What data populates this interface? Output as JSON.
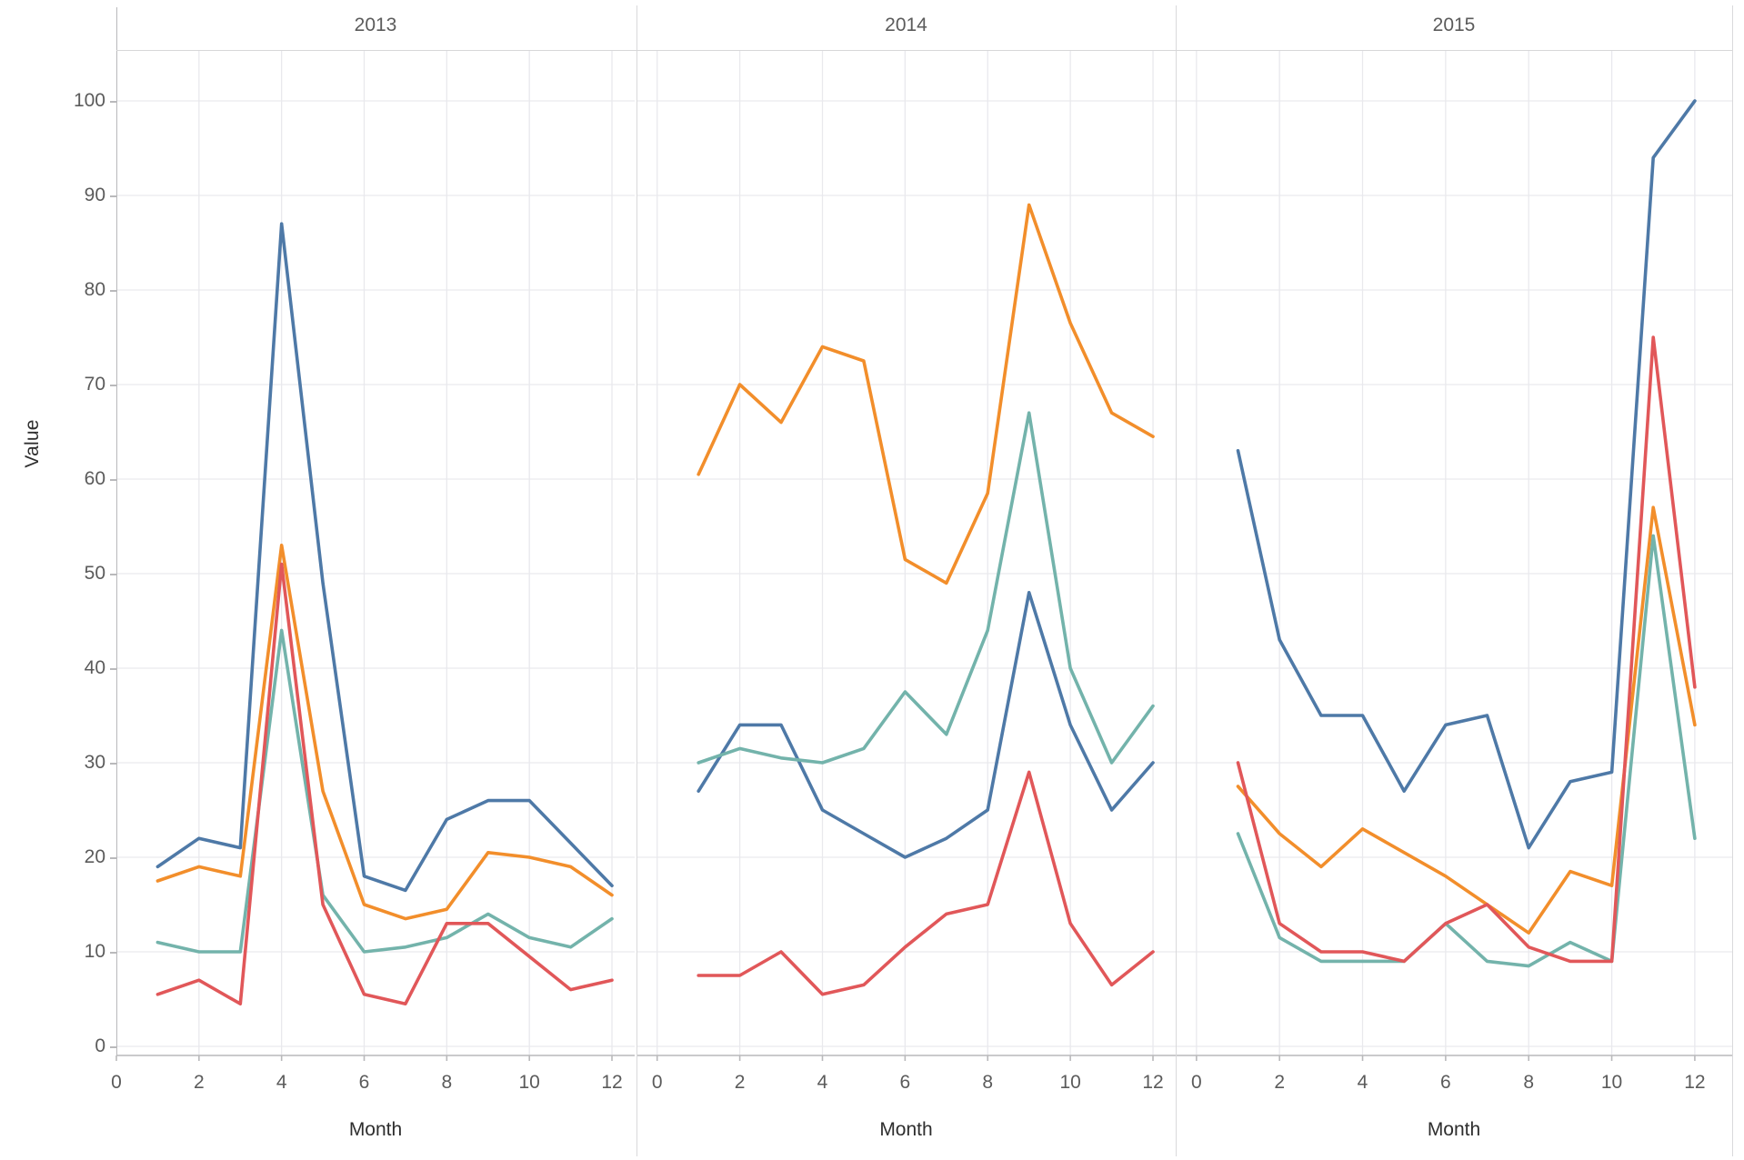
{
  "figure": {
    "y_axis": {
      "label": "Value",
      "ticks": [
        0,
        10,
        20,
        30,
        40,
        50,
        60,
        70,
        80,
        90,
        100
      ],
      "range": [
        -1,
        105.5
      ]
    },
    "x_axis": {
      "label": "Month",
      "ticks": [
        0,
        2,
        4,
        6,
        8,
        10,
        12
      ]
    },
    "facet_titles": [
      "2013",
      "2014",
      "2015"
    ]
  },
  "chart_data": {
    "type": "line",
    "title": "",
    "xlabel": "Month",
    "ylabel": "Value",
    "ylim": [
      -1,
      105.5
    ],
    "x_ticks": [
      0,
      2,
      4,
      6,
      8,
      10,
      12
    ],
    "y_ticks": [
      0,
      10,
      20,
      30,
      40,
      50,
      60,
      70,
      80,
      90,
      100
    ],
    "grid": true,
    "legend": "none",
    "x": [
      1,
      2,
      3,
      4,
      5,
      6,
      7,
      8,
      9,
      10,
      11,
      12
    ],
    "palette": {
      "blue": "#4e79a7",
      "orange": "#f28e2b",
      "teal": "#73b3ab",
      "red": "#e15759"
    },
    "facets": [
      {
        "title": "2013",
        "series": [
          {
            "name": "blue",
            "color": "#4e79a7",
            "values": [
              19,
              22,
              21,
              87,
              49,
              18,
              16.5,
              24,
              26,
              26,
              21.5,
              17
            ]
          },
          {
            "name": "orange",
            "color": "#f28e2b",
            "values": [
              17.5,
              19,
              18,
              53,
              27,
              15,
              13.5,
              14.5,
              20.5,
              20,
              19,
              16
            ]
          },
          {
            "name": "teal",
            "color": "#73b3ab",
            "values": [
              11,
              10,
              10,
              44,
              16,
              10,
              10.5,
              11.5,
              14,
              11.5,
              10.5,
              13.5
            ]
          },
          {
            "name": "red",
            "color": "#e15759",
            "values": [
              5.5,
              7,
              4.5,
              51,
              15,
              5.5,
              4.5,
              13,
              13,
              9.5,
              6,
              7
            ]
          }
        ]
      },
      {
        "title": "2014",
        "series": [
          {
            "name": "blue",
            "color": "#4e79a7",
            "values": [
              27,
              34,
              34,
              25,
              22.5,
              20,
              22,
              25,
              48,
              34,
              25,
              30
            ]
          },
          {
            "name": "orange",
            "color": "#f28e2b",
            "values": [
              60.5,
              70,
              66,
              74,
              72.5,
              51.5,
              49,
              58.5,
              89,
              76.5,
              67,
              64.5
            ]
          },
          {
            "name": "teal",
            "color": "#73b3ab",
            "values": [
              30,
              31.5,
              30.5,
              30,
              31.5,
              37.5,
              33,
              44,
              67,
              40,
              30,
              36
            ]
          },
          {
            "name": "red",
            "color": "#e15759",
            "values": [
              7.5,
              7.5,
              10,
              5.5,
              6.5,
              10.5,
              14,
              15,
              29,
              13,
              6.5,
              10
            ]
          }
        ]
      },
      {
        "title": "2015",
        "series": [
          {
            "name": "blue",
            "color": "#4e79a7",
            "values": [
              63,
              43,
              35,
              35,
              27,
              34,
              35,
              21,
              28,
              29,
              94,
              100
            ]
          },
          {
            "name": "orange",
            "color": "#f28e2b",
            "values": [
              27.5,
              22.5,
              19,
              23,
              20.5,
              18,
              15,
              12,
              18.5,
              17,
              57,
              34
            ]
          },
          {
            "name": "teal",
            "color": "#73b3ab",
            "values": [
              22.5,
              11.5,
              9,
              9,
              9,
              13,
              9,
              8.5,
              11,
              9,
              54,
              22
            ]
          },
          {
            "name": "red",
            "color": "#e15759",
            "values": [
              30,
              13,
              10,
              10,
              9,
              13,
              15,
              10.5,
              9,
              9,
              75,
              38
            ]
          }
        ]
      }
    ]
  }
}
